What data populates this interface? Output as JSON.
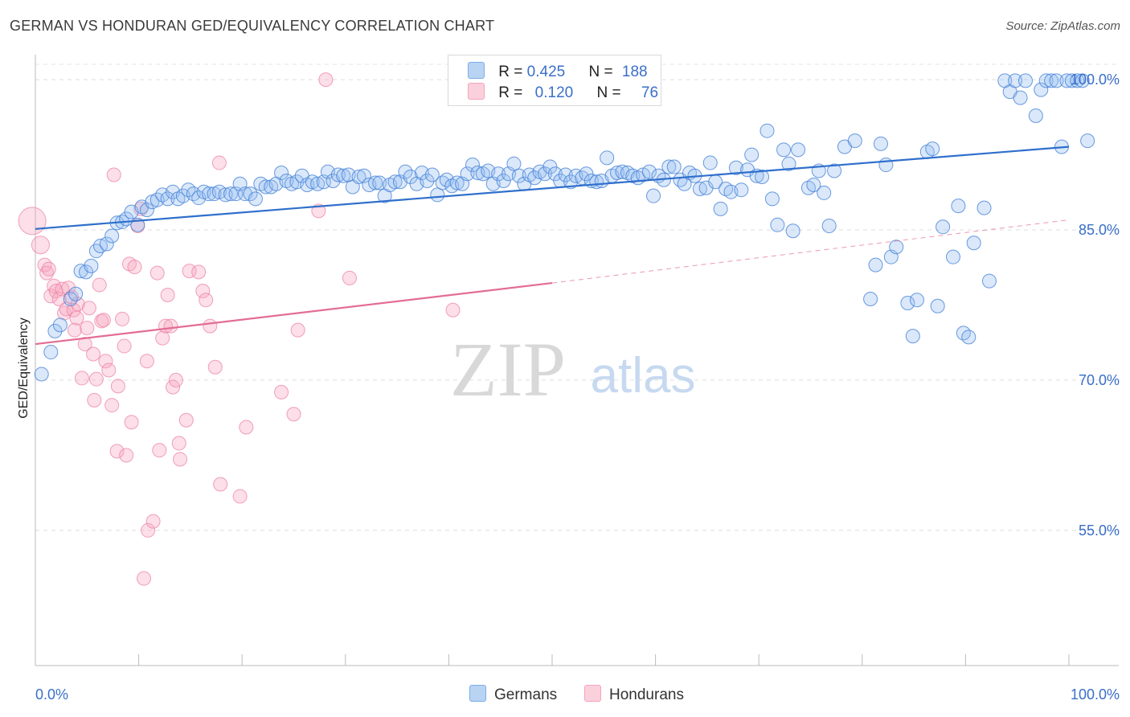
{
  "title": "GERMAN VS HONDURAN GED/EQUIVALENCY CORRELATION CHART",
  "source": "Source: ZipAtlas.com",
  "watermark": {
    "zip": "ZIP",
    "atlas": "atlas"
  },
  "legend_top": {
    "germans": {
      "r_label": "R =",
      "r_value": "0.425",
      "n_label": "N =",
      "n_value": "188"
    },
    "hondurans": {
      "r_label": "R =",
      "r_value": "0.120",
      "n_label": "N =",
      "n_value": "76"
    }
  },
  "legend_bottom": {
    "germans": "Germans",
    "hondurans": "Hondurans"
  },
  "colors": {
    "german": "#7aaee8",
    "german_line": "#2f6fcc",
    "honduran": "#f5a3bd",
    "honduran_line": "#e36d93",
    "tick_label": "#3a6fc9"
  },
  "chart_data": {
    "type": "scatter",
    "title": "GERMAN VS HONDURAN GED/EQUIVALENCY CORRELATION CHART",
    "xlabel": "",
    "ylabel": "GED/Equivalency",
    "x_tick_labels": [
      "0.0%",
      "100.0%"
    ],
    "y_tick_labels": [
      "100.0%",
      "85.0%",
      "70.0%",
      "55.0%"
    ],
    "y_ticks": [
      100,
      85,
      70,
      55
    ],
    "xlim": [
      0,
      100
    ],
    "ylim": [
      41.5,
      102.5
    ],
    "grid": "horizontal dashed",
    "legend_placement": "top-center",
    "series": [
      {
        "name": "Germans",
        "r": 0.425,
        "n": 188,
        "trend": [
          [
            0,
            85.1
          ],
          [
            100,
            93.3
          ]
        ],
        "points": [
          [
            0.6,
            70.6
          ],
          [
            1.5,
            72.8
          ],
          [
            1.9,
            74.9
          ],
          [
            2.4,
            75.5
          ],
          [
            3.4,
            78.1
          ],
          [
            3.9,
            78.6
          ],
          [
            4.4,
            80.9
          ],
          [
            4.9,
            80.8
          ],
          [
            5.4,
            81.4
          ],
          [
            5.9,
            82.9
          ],
          [
            6.3,
            83.4
          ],
          [
            6.9,
            83.6
          ],
          [
            7.4,
            84.4
          ],
          [
            7.9,
            85.7
          ],
          [
            8.4,
            85.8
          ],
          [
            8.8,
            86.1
          ],
          [
            9.3,
            86.8
          ],
          [
            9.9,
            85.5
          ],
          [
            10.3,
            87.3
          ],
          [
            10.8,
            87.0
          ],
          [
            11.3,
            87.8
          ],
          [
            11.8,
            88.0
          ],
          [
            12.3,
            88.5
          ],
          [
            12.8,
            88.1
          ],
          [
            13.3,
            88.8
          ],
          [
            13.8,
            88.1
          ],
          [
            14.3,
            88.4
          ],
          [
            14.8,
            89.0
          ],
          [
            15.3,
            88.6
          ],
          [
            15.8,
            88.2
          ],
          [
            16.3,
            88.8
          ],
          [
            16.8,
            88.6
          ],
          [
            17.3,
            88.6
          ],
          [
            17.8,
            88.8
          ],
          [
            18.4,
            88.5
          ],
          [
            18.9,
            88.6
          ],
          [
            19.4,
            88.6
          ],
          [
            19.8,
            89.6
          ],
          [
            20.3,
            88.6
          ],
          [
            20.8,
            88.6
          ],
          [
            21.3,
            88.1
          ],
          [
            21.8,
            89.6
          ],
          [
            22.3,
            89.3
          ],
          [
            22.8,
            89.3
          ],
          [
            23.3,
            89.6
          ],
          [
            23.8,
            90.7
          ],
          [
            24.3,
            89.9
          ],
          [
            24.8,
            89.6
          ],
          [
            25.3,
            89.8
          ],
          [
            25.8,
            90.4
          ],
          [
            26.3,
            89.5
          ],
          [
            26.8,
            89.8
          ],
          [
            27.3,
            89.6
          ],
          [
            27.9,
            89.8
          ],
          [
            28.3,
            90.8
          ],
          [
            28.8,
            89.9
          ],
          [
            29.3,
            90.5
          ],
          [
            29.8,
            90.4
          ],
          [
            30.3,
            90.5
          ],
          [
            30.7,
            89.3
          ],
          [
            31.3,
            90.3
          ],
          [
            31.8,
            90.4
          ],
          [
            32.3,
            89.5
          ],
          [
            32.9,
            89.7
          ],
          [
            33.3,
            89.7
          ],
          [
            33.8,
            88.4
          ],
          [
            34.3,
            89.5
          ],
          [
            34.8,
            89.8
          ],
          [
            35.3,
            89.8
          ],
          [
            35.8,
            90.8
          ],
          [
            36.3,
            90.3
          ],
          [
            36.9,
            89.6
          ],
          [
            37.4,
            90.7
          ],
          [
            37.9,
            89.9
          ],
          [
            38.4,
            90.5
          ],
          [
            38.9,
            88.5
          ],
          [
            39.4,
            89.7
          ],
          [
            39.8,
            90.0
          ],
          [
            40.3,
            89.4
          ],
          [
            40.8,
            89.7
          ],
          [
            41.3,
            89.6
          ],
          [
            41.8,
            90.6
          ],
          [
            42.3,
            91.5
          ],
          [
            42.8,
            90.7
          ],
          [
            43.3,
            90.6
          ],
          [
            43.8,
            90.9
          ],
          [
            44.3,
            89.6
          ],
          [
            44.8,
            90.6
          ],
          [
            45.3,
            89.9
          ],
          [
            45.8,
            90.6
          ],
          [
            46.3,
            91.6
          ],
          [
            46.8,
            90.4
          ],
          [
            47.3,
            89.6
          ],
          [
            47.8,
            90.5
          ],
          [
            48.3,
            90.2
          ],
          [
            48.8,
            90.8
          ],
          [
            49.3,
            90.6
          ],
          [
            49.8,
            91.3
          ],
          [
            50.3,
            90.6
          ],
          [
            50.8,
            89.9
          ],
          [
            51.3,
            90.5
          ],
          [
            51.8,
            89.8
          ],
          [
            52.3,
            90.4
          ],
          [
            52.9,
            90.2
          ],
          [
            53.3,
            90.6
          ],
          [
            53.8,
            89.9
          ],
          [
            54.3,
            89.8
          ],
          [
            54.8,
            89.9
          ],
          [
            55.3,
            92.2
          ],
          [
            55.8,
            90.4
          ],
          [
            56.3,
            90.7
          ],
          [
            56.8,
            90.8
          ],
          [
            57.3,
            90.7
          ],
          [
            57.8,
            90.4
          ],
          [
            58.3,
            90.2
          ],
          [
            58.8,
            90.5
          ],
          [
            59.4,
            90.8
          ],
          [
            59.8,
            88.4
          ],
          [
            60.3,
            90.4
          ],
          [
            60.8,
            90.0
          ],
          [
            61.3,
            91.3
          ],
          [
            61.8,
            91.3
          ],
          [
            62.4,
            90.0
          ],
          [
            62.8,
            89.6
          ],
          [
            63.3,
            90.7
          ],
          [
            63.8,
            90.4
          ],
          [
            64.3,
            89.1
          ],
          [
            64.9,
            89.2
          ],
          [
            65.3,
            91.7
          ],
          [
            65.8,
            89.8
          ],
          [
            66.3,
            87.1
          ],
          [
            66.8,
            89.1
          ],
          [
            67.3,
            88.8
          ],
          [
            67.8,
            91.2
          ],
          [
            68.3,
            89.0
          ],
          [
            68.9,
            91.0
          ],
          [
            69.3,
            92.5
          ],
          [
            69.8,
            90.4
          ],
          [
            70.3,
            90.3
          ],
          [
            70.8,
            94.9
          ],
          [
            71.3,
            88.1
          ],
          [
            71.8,
            85.5
          ],
          [
            72.4,
            93.0
          ],
          [
            72.9,
            91.6
          ],
          [
            73.3,
            84.9
          ],
          [
            73.8,
            93.0
          ],
          [
            74.8,
            89.2
          ],
          [
            75.3,
            89.5
          ],
          [
            75.8,
            90.9
          ],
          [
            76.3,
            88.7
          ],
          [
            76.8,
            85.4
          ],
          [
            77.3,
            90.9
          ],
          [
            78.3,
            93.3
          ],
          [
            79.3,
            93.9
          ],
          [
            80.8,
            78.1
          ],
          [
            81.3,
            81.5
          ],
          [
            81.8,
            93.6
          ],
          [
            82.3,
            91.5
          ],
          [
            82.8,
            82.3
          ],
          [
            83.3,
            83.3
          ],
          [
            84.4,
            77.7
          ],
          [
            84.9,
            74.4
          ],
          [
            85.3,
            78.0
          ],
          [
            86.3,
            92.8
          ],
          [
            86.8,
            93.1
          ],
          [
            87.3,
            77.4
          ],
          [
            87.8,
            85.3
          ],
          [
            88.8,
            82.3
          ],
          [
            89.3,
            87.4
          ],
          [
            89.8,
            74.7
          ],
          [
            90.3,
            74.3
          ],
          [
            90.8,
            83.7
          ],
          [
            91.8,
            87.2
          ],
          [
            92.3,
            79.9
          ],
          [
            93.8,
            99.9
          ],
          [
            94.3,
            98.8
          ],
          [
            94.8,
            99.9
          ],
          [
            95.3,
            98.2
          ],
          [
            95.8,
            99.9
          ],
          [
            96.8,
            96.4
          ],
          [
            97.3,
            99.0
          ],
          [
            97.8,
            99.9
          ],
          [
            98.3,
            99.9
          ],
          [
            98.8,
            99.9
          ],
          [
            99.3,
            93.3
          ],
          [
            99.8,
            99.9
          ],
          [
            100.3,
            99.9
          ],
          [
            100.8,
            99.9
          ],
          [
            101.3,
            99.9
          ],
          [
            101.8,
            93.9
          ]
        ]
      },
      {
        "name": "Hondurans",
        "r": 0.12,
        "n": 76,
        "trend": [
          [
            0,
            73.6
          ],
          [
            50,
            79.7
          ]
        ],
        "trend_extension": [
          [
            50,
            79.7
          ],
          [
            100,
            86.0
          ]
        ],
        "points": [
          [
            -0.3,
            85.9
          ],
          [
            0.5,
            83.5
          ],
          [
            0.9,
            81.5
          ],
          [
            1.1,
            80.7
          ],
          [
            1.3,
            81.1
          ],
          [
            1.5,
            78.4
          ],
          [
            1.8,
            79.4
          ],
          [
            2.0,
            78.9
          ],
          [
            2.3,
            78.1
          ],
          [
            2.6,
            79.1
          ],
          [
            2.8,
            76.7
          ],
          [
            3.0,
            77.1
          ],
          [
            3.2,
            79.2
          ],
          [
            3.5,
            78.3
          ],
          [
            3.7,
            77.0
          ],
          [
            3.8,
            75.0
          ],
          [
            4.0,
            76.2
          ],
          [
            4.1,
            77.6
          ],
          [
            4.5,
            70.2
          ],
          [
            4.8,
            73.6
          ],
          [
            5.0,
            75.2
          ],
          [
            5.2,
            77.2
          ],
          [
            5.6,
            72.6
          ],
          [
            5.7,
            68.0
          ],
          [
            5.9,
            70.1
          ],
          [
            6.2,
            79.5
          ],
          [
            6.4,
            75.9
          ],
          [
            6.6,
            76.0
          ],
          [
            6.8,
            71.9
          ],
          [
            7.1,
            71.0
          ],
          [
            7.4,
            67.5
          ],
          [
            7.6,
            90.5
          ],
          [
            7.9,
            62.9
          ],
          [
            8.0,
            69.4
          ],
          [
            8.4,
            76.1
          ],
          [
            8.6,
            73.4
          ],
          [
            8.8,
            62.5
          ],
          [
            9.1,
            81.6
          ],
          [
            9.3,
            65.8
          ],
          [
            9.6,
            81.3
          ],
          [
            9.9,
            85.4
          ],
          [
            10.2,
            87.1
          ],
          [
            10.5,
            50.2
          ],
          [
            10.8,
            71.9
          ],
          [
            10.9,
            55.0
          ],
          [
            11.4,
            55.9
          ],
          [
            11.8,
            80.7
          ],
          [
            12.0,
            63.0
          ],
          [
            12.3,
            74.2
          ],
          [
            12.6,
            75.4
          ],
          [
            12.8,
            78.5
          ],
          [
            13.1,
            75.4
          ],
          [
            13.3,
            69.3
          ],
          [
            13.6,
            70.0
          ],
          [
            13.9,
            63.7
          ],
          [
            14.0,
            62.1
          ],
          [
            14.6,
            66.0
          ],
          [
            14.9,
            80.9
          ],
          [
            15.8,
            80.8
          ],
          [
            16.2,
            78.9
          ],
          [
            16.5,
            78.0
          ],
          [
            16.9,
            75.4
          ],
          [
            17.4,
            71.3
          ],
          [
            17.8,
            91.7
          ],
          [
            17.9,
            59.6
          ],
          [
            19.8,
            58.4
          ],
          [
            20.4,
            65.3
          ],
          [
            23.8,
            68.8
          ],
          [
            25.0,
            66.6
          ],
          [
            25.4,
            75.0
          ],
          [
            27.4,
            86.9
          ],
          [
            28.1,
            100.0
          ],
          [
            30.4,
            80.2
          ],
          [
            40.4,
            77.0
          ]
        ]
      }
    ]
  }
}
